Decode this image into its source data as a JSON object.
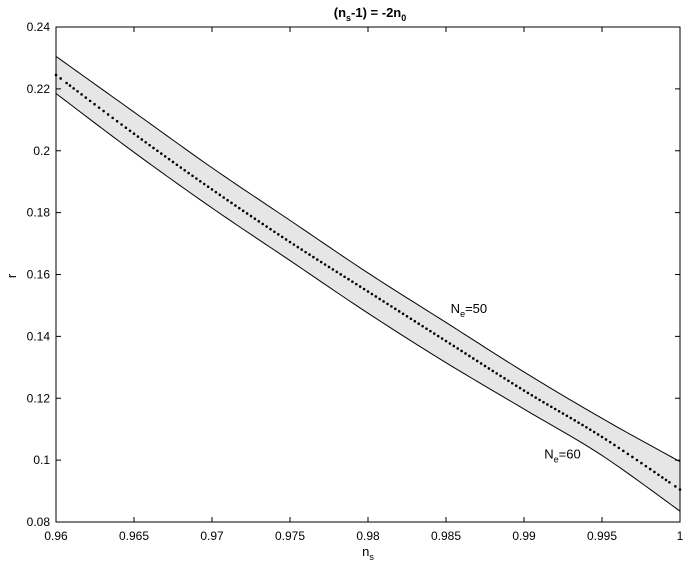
{
  "chart_data": {
    "type": "area",
    "title": "(n_s-1) = -2n_0",
    "title_parts": {
      "a": "(n",
      "a_sub": "s",
      "b": "-1) = -2n",
      "b_sub": "0"
    },
    "xlabel": "n_s",
    "xlabel_parts": {
      "main": "n",
      "sub": "s"
    },
    "ylabel": "r",
    "xlim": [
      0.96,
      1.0
    ],
    "ylim": [
      0.08,
      0.24
    ],
    "x_ticks": [
      0.96,
      0.965,
      0.97,
      0.975,
      0.98,
      0.985,
      0.99,
      0.995,
      1
    ],
    "x_tick_labels": [
      "0.96",
      "0.965",
      "0.97",
      "0.975",
      "0.98",
      "0.985",
      "0.99",
      "0.995",
      "1"
    ],
    "y_ticks": [
      0.08,
      0.1,
      0.12,
      0.14,
      0.16,
      0.18,
      0.2,
      0.22,
      0.24
    ],
    "y_tick_labels": [
      "0.08",
      "0.1",
      "0.12",
      "0.14",
      "0.16",
      "0.18",
      "0.2",
      "0.22",
      "0.24"
    ],
    "grid": false,
    "band_fill_color": "#e6e6e6",
    "line_color": "#000000",
    "series": [
      {
        "name": "N_e=50",
        "style": "solid",
        "x": [
          0.96,
          0.965,
          0.97,
          0.975,
          0.98,
          0.985,
          0.99,
          0.995,
          1.0
        ],
        "y": [
          0.2305,
          0.2125,
          0.1945,
          0.1775,
          0.1605,
          0.1445,
          0.1285,
          0.1135,
          0.0995
        ]
      },
      {
        "name": "N_e=60",
        "style": "solid",
        "x": [
          0.96,
          0.965,
          0.97,
          0.975,
          0.98,
          0.985,
          0.99,
          0.995,
          1.0
        ],
        "y": [
          0.2185,
          0.1995,
          0.1815,
          0.1645,
          0.1475,
          0.1315,
          0.1165,
          0.1015,
          0.0835
        ]
      },
      {
        "style": "dotted",
        "x": [
          0.96,
          0.965,
          0.97,
          0.975,
          0.98,
          0.985,
          0.99,
          0.995,
          1.0
        ],
        "y": [
          0.2245,
          0.2055,
          0.1875,
          0.1705,
          0.1545,
          0.1385,
          0.1225,
          0.1075,
          0.0905
        ]
      }
    ],
    "annotations": [
      {
        "main": "N",
        "sub": "e",
        "rest": "=50",
        "x": 0.9853,
        "y": 0.1475
      },
      {
        "main": "N",
        "sub": "e",
        "rest": "=60",
        "x": 0.9913,
        "y": 0.1005
      }
    ]
  }
}
